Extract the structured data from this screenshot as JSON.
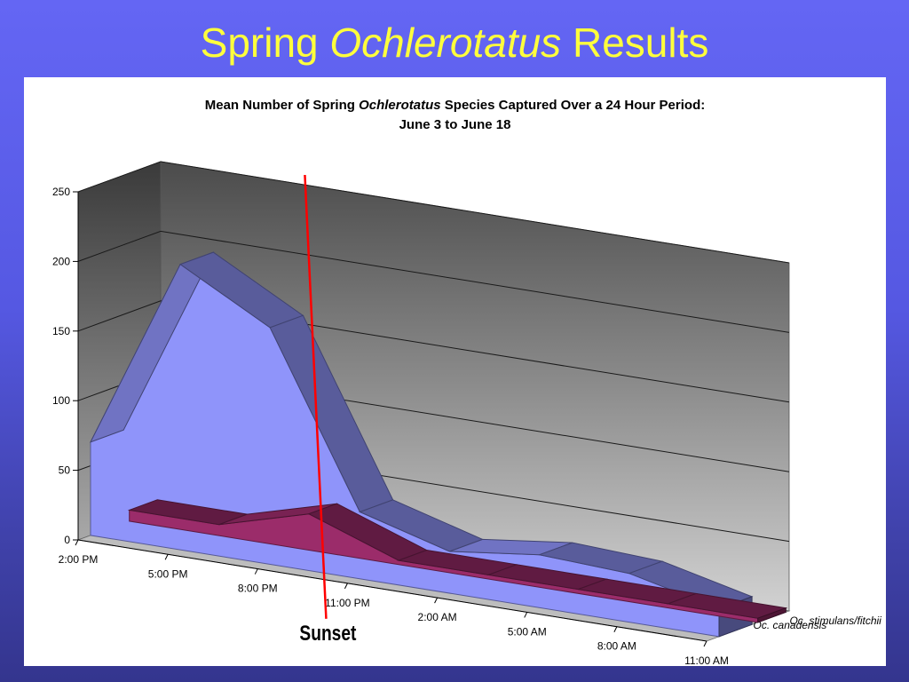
{
  "slide": {
    "title_pre": "Spring ",
    "title_italic": "Ochlerotatus",
    "title_post": " Results"
  },
  "chart_data": {
    "type": "area",
    "style": "3d",
    "title_pre": "Mean Number of Spring ",
    "title_italic": "Ochlerotatus",
    "title_post": " Species Captured Over a 24 Hour Period:",
    "subtitle": "June 3 to June 18",
    "categories": [
      "2:00 PM",
      "5:00 PM",
      "8:00 PM",
      "11:00 PM",
      "2:00 AM",
      "5:00 AM",
      "8:00 AM",
      "11:00 AM"
    ],
    "ylim": [
      0,
      250
    ],
    "yticks": [
      0,
      50,
      100,
      150,
      200,
      250
    ],
    "grid": true,
    "series": [
      {
        "name": "Oc. canadensis",
        "values": [
          67,
          205,
          170,
          48,
          30,
          38,
          35,
          20
        ],
        "color": "#8f94fa"
      },
      {
        "name": "Oc. stimulans/fitchii",
        "values": [
          8,
          8,
          26,
          3,
          3,
          3,
          3,
          3
        ],
        "color": "#9b2c6a"
      }
    ],
    "annotation": {
      "label": "Sunset",
      "at": "11:00 PM",
      "color": "#ff0000"
    }
  }
}
